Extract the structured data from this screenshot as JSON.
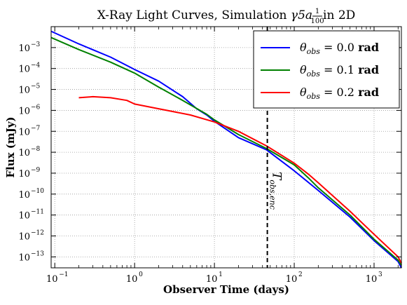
{
  "chart_data": {
    "type": "line",
    "title": {
      "prefix": "X-Ray Light Curves, Simulation ",
      "math_gamma": "γ5a",
      "frac_num": "1",
      "frac_den": "100",
      "suffix": " in 2D"
    },
    "xlabel": "Observer Time (days)",
    "ylabel": "Flux (mJy)",
    "x_scale": "log",
    "y_scale": "log",
    "xlim": [
      0.09,
      2200
    ],
    "ylim": [
      3e-14,
      0.01
    ],
    "grid": true,
    "legend_position": "top-right",
    "x_ticks": [
      {
        "value": 0.1,
        "base": "10",
        "exp": "−1"
      },
      {
        "value": 1,
        "base": "10",
        "exp": "0"
      },
      {
        "value": 10,
        "base": "10",
        "exp": "1"
      },
      {
        "value": 100,
        "base": "10",
        "exp": "2"
      },
      {
        "value": 1000,
        "base": "10",
        "exp": "3"
      }
    ],
    "y_ticks": [
      {
        "value": 1e-13,
        "base": "10",
        "exp": "−13"
      },
      {
        "value": 1e-12,
        "base": "10",
        "exp": "−12"
      },
      {
        "value": 1e-11,
        "base": "10",
        "exp": "−11"
      },
      {
        "value": 1e-10,
        "base": "10",
        "exp": "−10"
      },
      {
        "value": 1e-09,
        "base": "10",
        "exp": "−9"
      },
      {
        "value": 1e-08,
        "base": "10",
        "exp": "−8"
      },
      {
        "value": 1e-07,
        "base": "10",
        "exp": "−7"
      },
      {
        "value": 1e-06,
        "base": "10",
        "exp": "−6"
      },
      {
        "value": 1e-05,
        "base": "10",
        "exp": "−5"
      },
      {
        "value": 0.0001,
        "base": "10",
        "exp": "−4"
      },
      {
        "value": 0.001,
        "base": "10",
        "exp": "−3"
      }
    ],
    "vertical_line": {
      "x": 46,
      "label_main": "T",
      "label_sub": "obs,enc",
      "color": "#000000"
    },
    "series": [
      {
        "name": "θobs = 0.0 rad",
        "label_symbol": "θ",
        "label_sub": "obs",
        "label_value": " = 0.0 ",
        "label_unit": "rad",
        "color": "#0000ff",
        "x": [
          0.09,
          0.2,
          0.5,
          1,
          2,
          4,
          6,
          8,
          10,
          20,
          45,
          100,
          200,
          500,
          1000,
          2000,
          2200
        ],
        "y": [
          0.006,
          0.0015,
          0.00035,
          9e-05,
          2.5e-05,
          4.5e-06,
          1.2e-06,
          6e-07,
          3e-07,
          5e-08,
          1.3e-08,
          1.3e-09,
          1.5e-10,
          8e-12,
          6e-13,
          6e-14,
          3e-14
        ]
      },
      {
        "name": "θobs = 0.1 rad",
        "label_symbol": "θ",
        "label_sub": "obs",
        "label_value": " = 0.1 ",
        "label_unit": "rad",
        "color": "#008000",
        "x": [
          0.09,
          0.2,
          0.5,
          1,
          2,
          4,
          8,
          10,
          20,
          45,
          100,
          150,
          200,
          500,
          1000,
          2000,
          2200
        ],
        "y": [
          0.003,
          0.0008,
          0.0002,
          6e-05,
          1.3e-05,
          3e-06,
          6.5e-07,
          3.5e-07,
          7e-08,
          1.5e-08,
          2.5e-09,
          6e-10,
          2e-10,
          1e-11,
          7e-13,
          7e-14,
          4e-14
        ]
      },
      {
        "name": "θobs = 0.2 rad",
        "label_symbol": "θ",
        "label_sub": "obs",
        "label_value": " = 0.2 ",
        "label_unit": "rad",
        "color": "#ff0000",
        "x": [
          0.2,
          0.3,
          0.5,
          0.8,
          1,
          2,
          5,
          10,
          20,
          45,
          100,
          150,
          200,
          500,
          1000,
          2000,
          2200
        ],
        "y": [
          4e-06,
          4.5e-06,
          4e-06,
          3e-06,
          2e-06,
          1.2e-06,
          6e-07,
          2.8e-07,
          1e-07,
          2e-08,
          3e-09,
          9e-10,
          3.5e-10,
          1.5e-11,
          1.2e-12,
          1e-13,
          5e-14
        ]
      }
    ]
  }
}
